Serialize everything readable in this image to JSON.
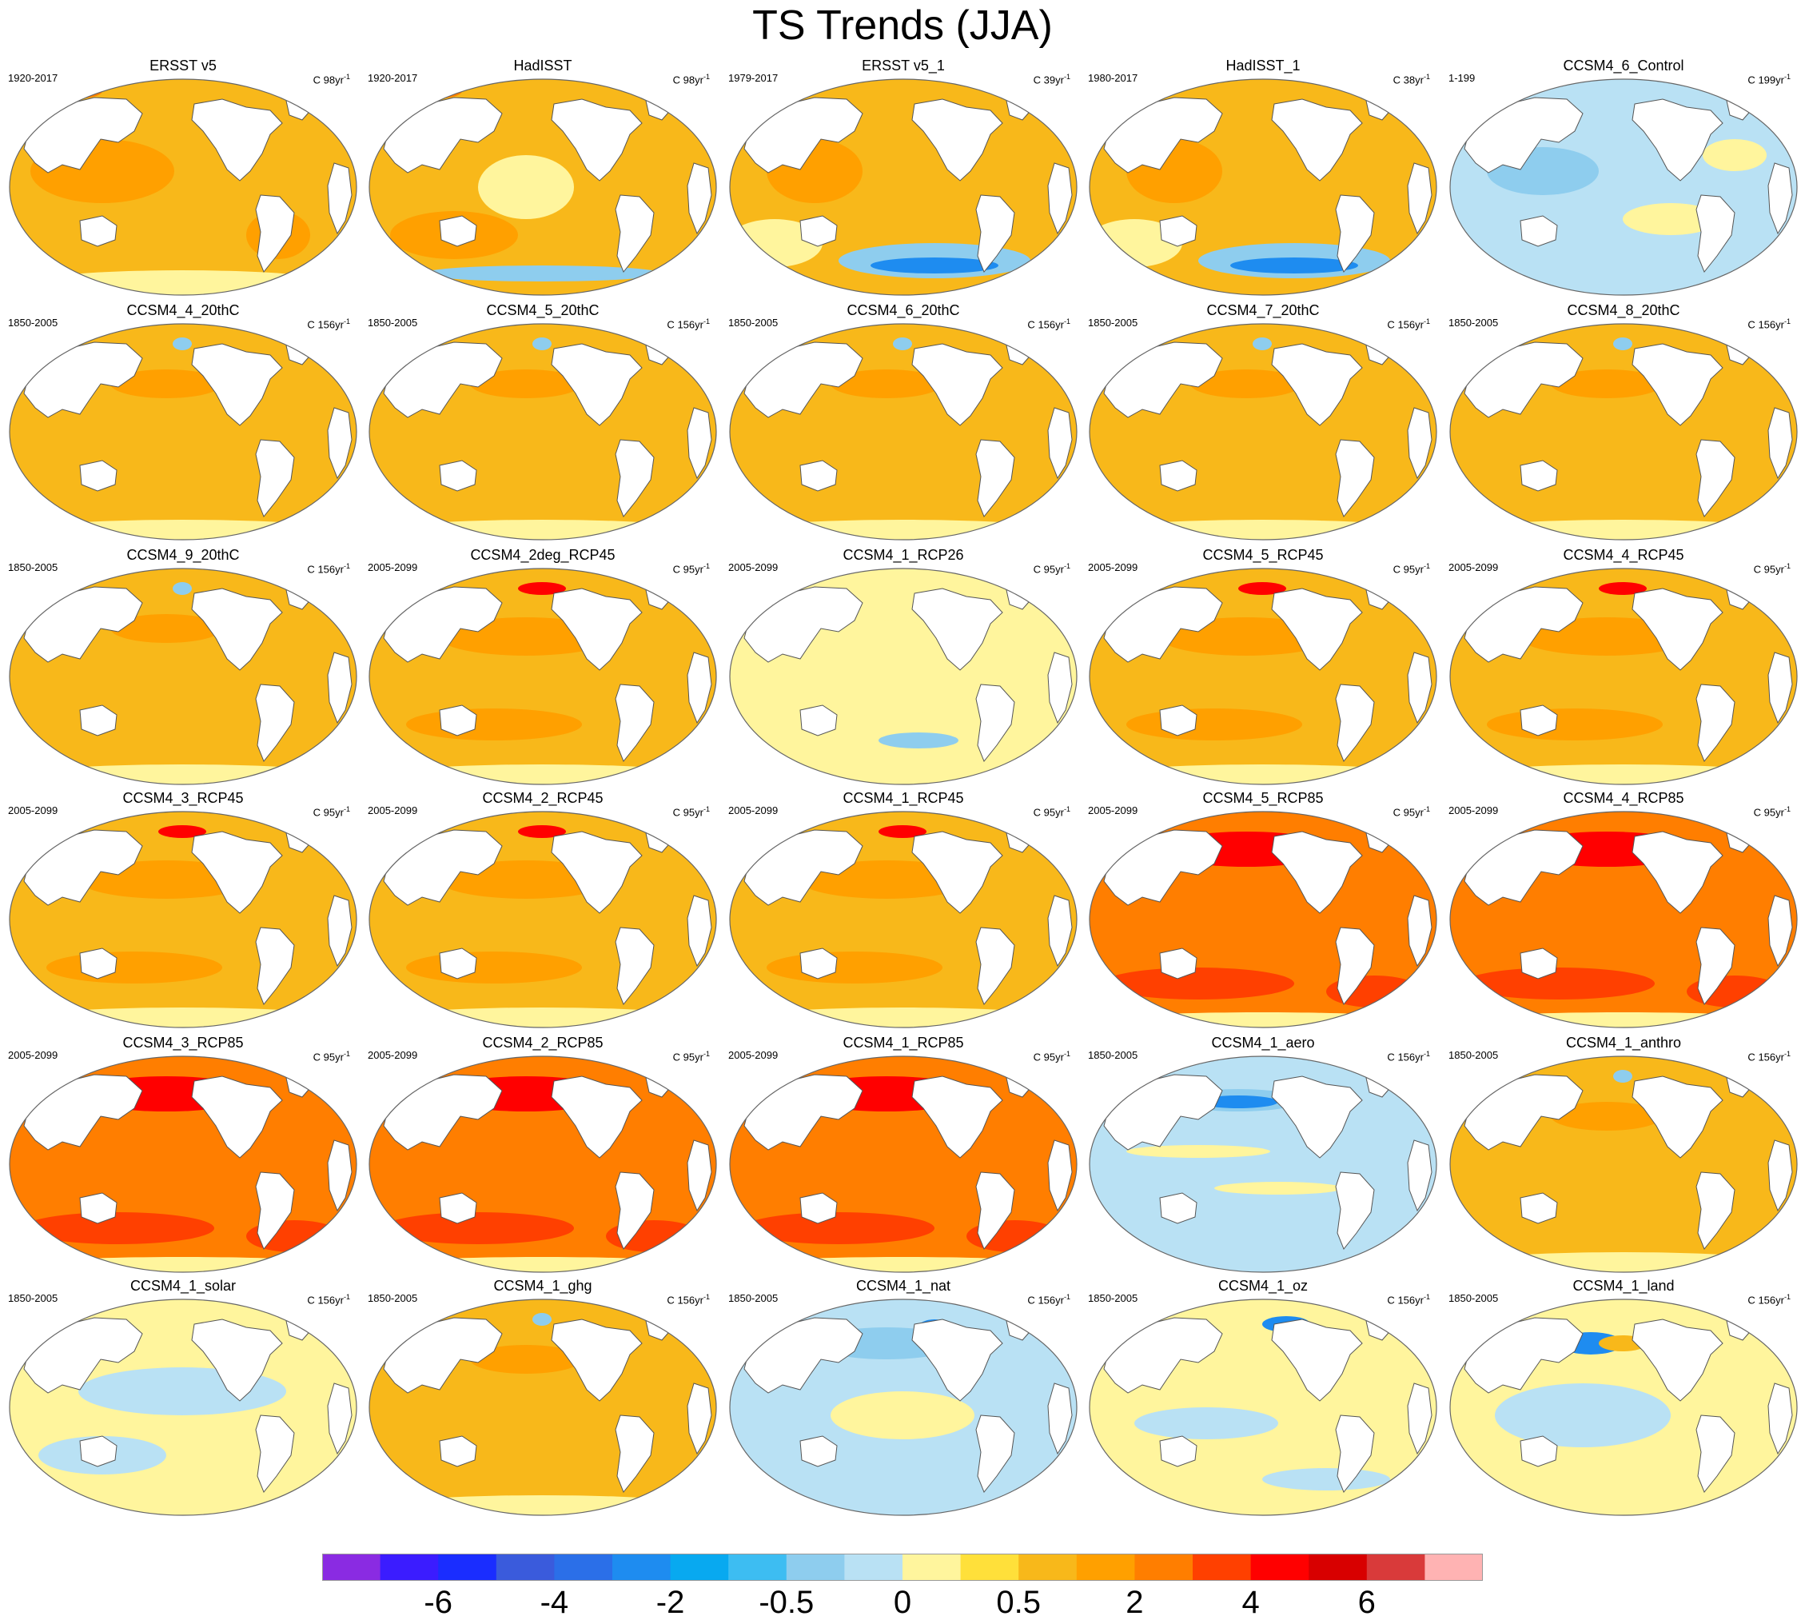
{
  "figure": {
    "title": "TS Trends (JJA)",
    "panel_unit_prefix": "C",
    "panel_unit_suffix": "yr",
    "panel_unit_exponent": "-1"
  },
  "panels": [
    {
      "title": "ERSST v5",
      "years": "1920-2017",
      "units": "98",
      "fill": "#f8b81a",
      "pattern": "obs"
    },
    {
      "title": "HadISST",
      "years": "1920-2017",
      "units": "98",
      "fill": "#f8b81a",
      "pattern": "obs_noisy"
    },
    {
      "title": "ERSST v5_1",
      "years": "1979-2017",
      "units": "39",
      "fill": "#f8b81a",
      "pattern": "obs_recent"
    },
    {
      "title": "HadISST_1",
      "years": "1980-2017",
      "units": "38",
      "fill": "#f8b81a",
      "pattern": "obs_recent"
    },
    {
      "title": "CCSM4_6_Control",
      "years": "1-199",
      "units": "199",
      "fill": "#b9e1f4",
      "pattern": "control"
    },
    {
      "title": "CCSM4_4_20thC",
      "years": "1850-2005",
      "units": "156",
      "fill": "#f8b81a",
      "pattern": "hist"
    },
    {
      "title": "CCSM4_5_20thC",
      "years": "1850-2005",
      "units": "156",
      "fill": "#f8b81a",
      "pattern": "hist"
    },
    {
      "title": "CCSM4_6_20thC",
      "years": "1850-2005",
      "units": "156",
      "fill": "#f8b81a",
      "pattern": "hist"
    },
    {
      "title": "CCSM4_7_20thC",
      "years": "1850-2005",
      "units": "156",
      "fill": "#f8b81a",
      "pattern": "hist"
    },
    {
      "title": "CCSM4_8_20thC",
      "years": "1850-2005",
      "units": "156",
      "fill": "#f8b81a",
      "pattern": "hist"
    },
    {
      "title": "CCSM4_9_20thC",
      "years": "1850-2005",
      "units": "156",
      "fill": "#f8b81a",
      "pattern": "hist"
    },
    {
      "title": "CCSM4_2deg_RCP45",
      "years": "2005-2099",
      "units": "95",
      "fill": "#f8b81a",
      "pattern": "rcp45"
    },
    {
      "title": "CCSM4_1_RCP26",
      "years": "2005-2099",
      "units": "95",
      "fill": "#fff59d",
      "pattern": "rcp26"
    },
    {
      "title": "CCSM4_5_RCP45",
      "years": "2005-2099",
      "units": "95",
      "fill": "#f8b81a",
      "pattern": "rcp45"
    },
    {
      "title": "CCSM4_4_RCP45",
      "years": "2005-2099",
      "units": "95",
      "fill": "#f8b81a",
      "pattern": "rcp45"
    },
    {
      "title": "CCSM4_3_RCP45",
      "years": "2005-2099",
      "units": "95",
      "fill": "#f8b81a",
      "pattern": "rcp45"
    },
    {
      "title": "CCSM4_2_RCP45",
      "years": "2005-2099",
      "units": "95",
      "fill": "#f8b81a",
      "pattern": "rcp45"
    },
    {
      "title": "CCSM4_1_RCP45",
      "years": "2005-2099",
      "units": "95",
      "fill": "#f8b81a",
      "pattern": "rcp45"
    },
    {
      "title": "CCSM4_5_RCP85",
      "years": "2005-2099",
      "units": "95",
      "fill": "#ff7e00",
      "pattern": "rcp85"
    },
    {
      "title": "CCSM4_4_RCP85",
      "years": "2005-2099",
      "units": "95",
      "fill": "#ff7e00",
      "pattern": "rcp85"
    },
    {
      "title": "CCSM4_3_RCP85",
      "years": "2005-2099",
      "units": "95",
      "fill": "#ff7e00",
      "pattern": "rcp85"
    },
    {
      "title": "CCSM4_2_RCP85",
      "years": "2005-2099",
      "units": "95",
      "fill": "#ff7e00",
      "pattern": "rcp85"
    },
    {
      "title": "CCSM4_1_RCP85",
      "years": "2005-2099",
      "units": "95",
      "fill": "#ff7e00",
      "pattern": "rcp85"
    },
    {
      "title": "CCSM4_1_aero",
      "years": "1850-2005",
      "units": "156",
      "fill": "#b9e1f4",
      "pattern": "aero"
    },
    {
      "title": "CCSM4_1_anthro",
      "years": "1850-2005",
      "units": "156",
      "fill": "#f8b81a",
      "pattern": "hist"
    },
    {
      "title": "CCSM4_1_solar",
      "years": "1850-2005",
      "units": "156",
      "fill": "#fff59d",
      "pattern": "solar"
    },
    {
      "title": "CCSM4_1_ghg",
      "years": "1850-2005",
      "units": "156",
      "fill": "#f8b81a",
      "pattern": "hist"
    },
    {
      "title": "CCSM4_1_nat",
      "years": "1850-2005",
      "units": "156",
      "fill": "#b9e1f4",
      "pattern": "nat"
    },
    {
      "title": "CCSM4_1_oz",
      "years": "1850-2005",
      "units": "156",
      "fill": "#fff59d",
      "pattern": "oz"
    },
    {
      "title": "CCSM4_1_land",
      "years": "1850-2005",
      "units": "156",
      "fill": "#fff59d",
      "pattern": "land"
    }
  ],
  "colorbar": {
    "colors": [
      "#8a2be2",
      "#3b1cff",
      "#1a2dff",
      "#3a5bdc",
      "#2b6fe8",
      "#1e8cf0",
      "#08a9f0",
      "#3dbdf2",
      "#8ecdee",
      "#b9e1f4",
      "#fff59d",
      "#ffe03a",
      "#f8b81a",
      "#ffa000",
      "#ff7e00",
      "#ff4000",
      "#ff0000",
      "#d80000",
      "#d93a3a",
      "#ffb3b3"
    ],
    "tick_labels": [
      "-6",
      "-4",
      "-2",
      "-0.5",
      "0",
      "0.5",
      "2",
      "4",
      "6"
    ]
  }
}
